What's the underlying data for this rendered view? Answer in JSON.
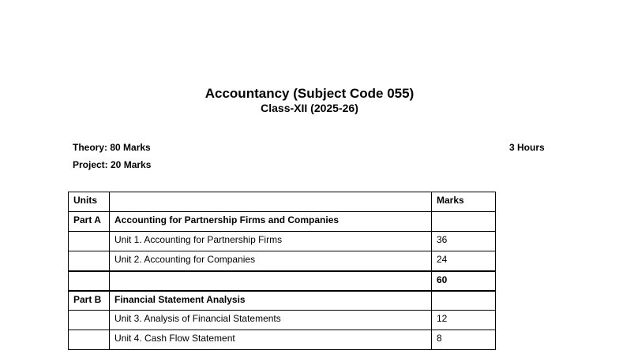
{
  "header": {
    "title": "Accountancy (Subject Code 055)",
    "subtitle": "Class-XII (2025-26)"
  },
  "meta": {
    "theory": "Theory: 80 Marks",
    "project": "Project: 20 Marks",
    "duration": "3 Hours"
  },
  "table": {
    "headers": [
      "Units",
      "",
      "Marks"
    ],
    "rows": [
      {
        "unit": "Part A",
        "title": "Accounting for Partnership Firms and Companies",
        "marks": "",
        "bold": true
      },
      {
        "unit": "",
        "title": "Unit 1. Accounting for Partnership Firms",
        "marks": "36",
        "bold": false
      },
      {
        "unit": "",
        "title": "Unit 2. Accounting for Companies",
        "marks": "24",
        "bold": false
      },
      {
        "unit": "",
        "title": "",
        "marks": "60",
        "bold": true
      },
      {
        "unit": "Part B",
        "title": "Financial Statement Analysis",
        "marks": "",
        "bold": true
      },
      {
        "unit": "",
        "title": "Unit 3. Analysis of Financial Statements",
        "marks": "12",
        "bold": false
      },
      {
        "unit": "",
        "title": "Unit 4. Cash Flow Statement",
        "marks": "8",
        "bold": false
      }
    ]
  }
}
